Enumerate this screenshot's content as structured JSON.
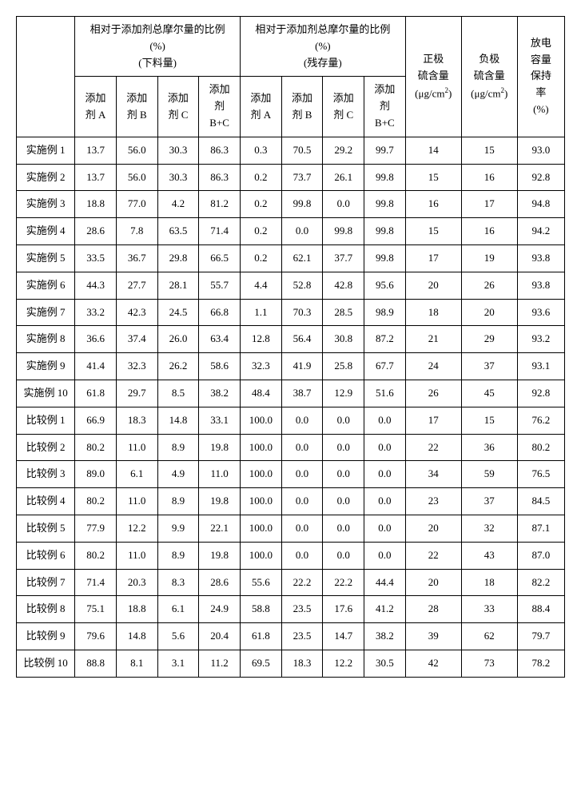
{
  "headers": {
    "group1_line1": "相对于添加剂总摩尔量的比例",
    "group1_line2": "(%)",
    "group1_line3": "(下料量)",
    "group2_line1": "相对于添加剂总摩尔量的比例",
    "group2_line2": "(%)",
    "group2_line3": "(残存量)",
    "addA_l1": "添加",
    "addA_l2": "剂 A",
    "addB_l1": "添加",
    "addB_l2": "剂 B",
    "addC_l1": "添加",
    "addC_l2": "剂 C",
    "addBC_l1": "添加",
    "addBC_l2": "剂",
    "addBC_l3": "B+C",
    "pos_l1": "正极",
    "pos_l2": "硫含量",
    "pos_unit_a": "(μg/cm",
    "pos_unit_sup": "2",
    "pos_unit_b": ")",
    "neg_l1": "负极",
    "neg_l2": "硫含量",
    "ret_l1": "放电",
    "ret_l2": "容量",
    "ret_l3": "保持",
    "ret_l4": "率",
    "ret_l5": "(%)"
  },
  "rows": [
    {
      "label": "实施例 1",
      "a1": "13.7",
      "b1": "56.0",
      "c1": "30.3",
      "bc1": "86.3",
      "a2": "0.3",
      "b2": "70.5",
      "c2": "29.2",
      "bc2": "99.7",
      "pos": "14",
      "neg": "15",
      "ret": "93.0"
    },
    {
      "label": "实施例 2",
      "a1": "13.7",
      "b1": "56.0",
      "c1": "30.3",
      "bc1": "86.3",
      "a2": "0.2",
      "b2": "73.7",
      "c2": "26.1",
      "bc2": "99.8",
      "pos": "15",
      "neg": "16",
      "ret": "92.8"
    },
    {
      "label": "实施例 3",
      "a1": "18.8",
      "b1": "77.0",
      "c1": "4.2",
      "bc1": "81.2",
      "a2": "0.2",
      "b2": "99.8",
      "c2": "0.0",
      "bc2": "99.8",
      "pos": "16",
      "neg": "17",
      "ret": "94.8"
    },
    {
      "label": "实施例 4",
      "a1": "28.6",
      "b1": "7.8",
      "c1": "63.5",
      "bc1": "71.4",
      "a2": "0.2",
      "b2": "0.0",
      "c2": "99.8",
      "bc2": "99.8",
      "pos": "15",
      "neg": "16",
      "ret": "94.2"
    },
    {
      "label": "实施例 5",
      "a1": "33.5",
      "b1": "36.7",
      "c1": "29.8",
      "bc1": "66.5",
      "a2": "0.2",
      "b2": "62.1",
      "c2": "37.7",
      "bc2": "99.8",
      "pos": "17",
      "neg": "19",
      "ret": "93.8"
    },
    {
      "label": "实施例 6",
      "a1": "44.3",
      "b1": "27.7",
      "c1": "28.1",
      "bc1": "55.7",
      "a2": "4.4",
      "b2": "52.8",
      "c2": "42.8",
      "bc2": "95.6",
      "pos": "20",
      "neg": "26",
      "ret": "93.8"
    },
    {
      "label": "实施例 7",
      "a1": "33.2",
      "b1": "42.3",
      "c1": "24.5",
      "bc1": "66.8",
      "a2": "1.1",
      "b2": "70.3",
      "c2": "28.5",
      "bc2": "98.9",
      "pos": "18",
      "neg": "20",
      "ret": "93.6"
    },
    {
      "label": "实施例 8",
      "a1": "36.6",
      "b1": "37.4",
      "c1": "26.0",
      "bc1": "63.4",
      "a2": "12.8",
      "b2": "56.4",
      "c2": "30.8",
      "bc2": "87.2",
      "pos": "21",
      "neg": "29",
      "ret": "93.2"
    },
    {
      "label": "实施例 9",
      "a1": "41.4",
      "b1": "32.3",
      "c1": "26.2",
      "bc1": "58.6",
      "a2": "32.3",
      "b2": "41.9",
      "c2": "25.8",
      "bc2": "67.7",
      "pos": "24",
      "neg": "37",
      "ret": "93.1"
    },
    {
      "label": "实施例 10",
      "a1": "61.8",
      "b1": "29.7",
      "c1": "8.5",
      "bc1": "38.2",
      "a2": "48.4",
      "b2": "38.7",
      "c2": "12.9",
      "bc2": "51.6",
      "pos": "26",
      "neg": "45",
      "ret": "92.8"
    },
    {
      "label": "比较例 1",
      "a1": "66.9",
      "b1": "18.3",
      "c1": "14.8",
      "bc1": "33.1",
      "a2": "100.0",
      "b2": "0.0",
      "c2": "0.0",
      "bc2": "0.0",
      "pos": "17",
      "neg": "15",
      "ret": "76.2"
    },
    {
      "label": "比较例 2",
      "a1": "80.2",
      "b1": "11.0",
      "c1": "8.9",
      "bc1": "19.8",
      "a2": "100.0",
      "b2": "0.0",
      "c2": "0.0",
      "bc2": "0.0",
      "pos": "22",
      "neg": "36",
      "ret": "80.2"
    },
    {
      "label": "比较例 3",
      "a1": "89.0",
      "b1": "6.1",
      "c1": "4.9",
      "bc1": "11.0",
      "a2": "100.0",
      "b2": "0.0",
      "c2": "0.0",
      "bc2": "0.0",
      "pos": "34",
      "neg": "59",
      "ret": "76.5"
    },
    {
      "label": "比较例 4",
      "a1": "80.2",
      "b1": "11.0",
      "c1": "8.9",
      "bc1": "19.8",
      "a2": "100.0",
      "b2": "0.0",
      "c2": "0.0",
      "bc2": "0.0",
      "pos": "23",
      "neg": "37",
      "ret": "84.5"
    },
    {
      "label": "比较例 5",
      "a1": "77.9",
      "b1": "12.2",
      "c1": "9.9",
      "bc1": "22.1",
      "a2": "100.0",
      "b2": "0.0",
      "c2": "0.0",
      "bc2": "0.0",
      "pos": "20",
      "neg": "32",
      "ret": "87.1"
    },
    {
      "label": "比较例 6",
      "a1": "80.2",
      "b1": "11.0",
      "c1": "8.9",
      "bc1": "19.8",
      "a2": "100.0",
      "b2": "0.0",
      "c2": "0.0",
      "bc2": "0.0",
      "pos": "22",
      "neg": "43",
      "ret": "87.0"
    },
    {
      "label": "比较例 7",
      "a1": "71.4",
      "b1": "20.3",
      "c1": "8.3",
      "bc1": "28.6",
      "a2": "55.6",
      "b2": "22.2",
      "c2": "22.2",
      "bc2": "44.4",
      "pos": "20",
      "neg": "18",
      "ret": "82.2"
    },
    {
      "label": "比较例 8",
      "a1": "75.1",
      "b1": "18.8",
      "c1": "6.1",
      "bc1": "24.9",
      "a2": "58.8",
      "b2": "23.5",
      "c2": "17.6",
      "bc2": "41.2",
      "pos": "28",
      "neg": "33",
      "ret": "88.4"
    },
    {
      "label": "比较例 9",
      "a1": "79.6",
      "b1": "14.8",
      "c1": "5.6",
      "bc1": "20.4",
      "a2": "61.8",
      "b2": "23.5",
      "c2": "14.7",
      "bc2": "38.2",
      "pos": "39",
      "neg": "62",
      "ret": "79.7"
    },
    {
      "label": "比较例 10",
      "a1": "88.8",
      "b1": "8.1",
      "c1": "3.1",
      "bc1": "11.2",
      "a2": "69.5",
      "b2": "18.3",
      "c2": "12.2",
      "bc2": "30.5",
      "pos": "42",
      "neg": "73",
      "ret": "78.2"
    }
  ]
}
